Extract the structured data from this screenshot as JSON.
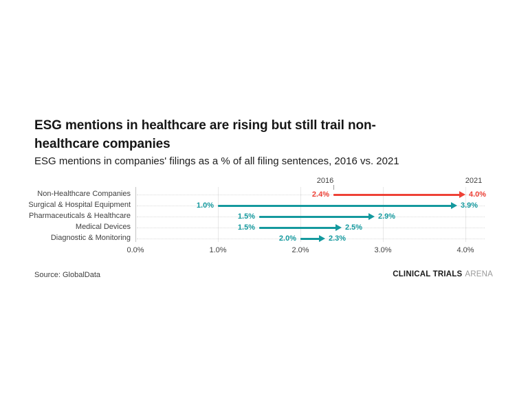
{
  "header": {
    "title_lines": {
      "0": "ESG mentions in healthcare are rising but still trail non-",
      "1": "healthcare companies"
    },
    "title_full": "ESG mentions in healthcare are rising but still trail non-healthcare companies",
    "subtitle": "ESG mentions in companies' filings as a % of all filing sentences, 2016 vs. 2021"
  },
  "chart_data": {
    "type": "arrow",
    "title": "ESG mentions in healthcare are rising but still trail non-healthcare companies",
    "subtitle": "ESG mentions in companies' filings as a % of all filing sentences, 2016 vs. 2021",
    "categories": [
      "Non-Healthcare Companies",
      "Surgical & Hospital Equipment",
      "Pharmaceuticals & Healthcare",
      "Medical Devices",
      "Diagnostic & Monitoring"
    ],
    "series": [
      {
        "name": "2016",
        "values": [
          2.4,
          1.0,
          1.5,
          1.5,
          2.0
        ]
      },
      {
        "name": "2021",
        "values": [
          4.0,
          3.9,
          2.9,
          2.5,
          2.3
        ]
      }
    ],
    "value_labels": {
      "start": [
        "2.4%",
        "1.0%",
        "1.5%",
        "1.5%",
        "2.0%"
      ],
      "end": [
        "4.0%",
        "3.9%",
        "2.9%",
        "2.5%",
        "2.3%"
      ]
    },
    "row_colors": [
      "#ee4136",
      "#14999e",
      "#14999e",
      "#14999e",
      "#14999e"
    ],
    "period_labels": [
      {
        "text": "2016",
        "value": 2.4,
        "tick": true,
        "offset": -12
      },
      {
        "text": "2021",
        "value": 4.0,
        "tick": false,
        "offset": 12
      }
    ],
    "x_ticks": [
      "0.0%",
      "1.0%",
      "2.0%",
      "3.0%",
      "4.0%"
    ],
    "x_tick_values": [
      0,
      1,
      2,
      3,
      4
    ],
    "xlim": [
      0,
      4.23
    ],
    "xlabel": "",
    "ylabel": "",
    "grid": "horizontal dotted rows, vertical solid ticks",
    "legend_position": "inline-top"
  },
  "colors": {
    "accent_red": "#ee4136",
    "accent_teal": "#14999e",
    "grid_light": "#e8e8e8",
    "axis_line": "#c4c4c4",
    "text_dark": "#161616",
    "text_gray": "#404040"
  },
  "footer": {
    "source": "Source: GlobalData",
    "brand_bold": "CLINICAL TRIALS",
    "brand_light": "ARENA"
  }
}
